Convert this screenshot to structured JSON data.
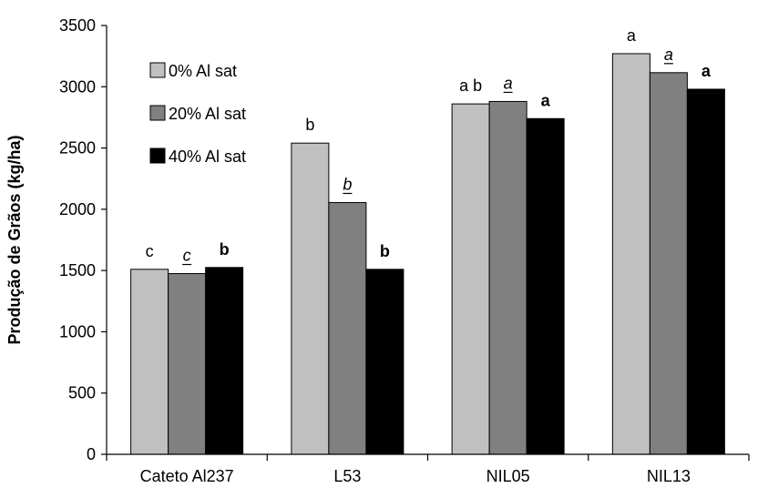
{
  "chart_data": {
    "type": "bar",
    "categories": [
      "Cateto Al237",
      "L53",
      "NIL05",
      "NIL13"
    ],
    "ylabel": "Produção de Grãos (kg/ha)",
    "ylim": [
      0,
      3500
    ],
    "yticks": [
      0,
      500,
      1000,
      1500,
      2000,
      2500,
      3000,
      3500
    ],
    "grid": false,
    "legend_position": "top-left",
    "series": [
      {
        "name": "0% Al sat",
        "color": "#c0c0c0",
        "values": [
          1510,
          2540,
          2860,
          3270
        ],
        "labels": [
          "c",
          "b",
          "a b",
          "a"
        ],
        "label_style": "plain"
      },
      {
        "name": "20% Al sat",
        "color": "#808080",
        "values": [
          1475,
          2055,
          2880,
          3115
        ],
        "labels": [
          "c",
          "b",
          "a",
          "a"
        ],
        "label_style": "italic-underline"
      },
      {
        "name": "40% Al sat",
        "color": "#000000",
        "values": [
          1525,
          1510,
          2740,
          2980
        ],
        "labels": [
          "b",
          "b",
          "a",
          "a"
        ],
        "label_style": "bold"
      }
    ]
  }
}
